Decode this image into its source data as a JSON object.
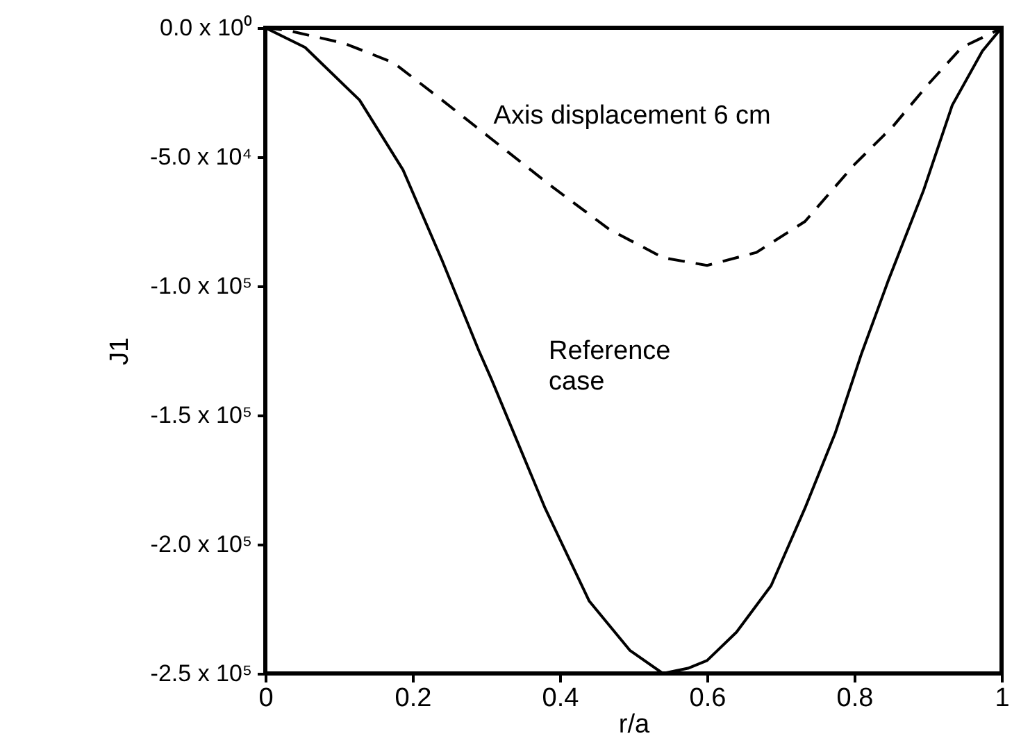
{
  "chart_data": {
    "type": "line",
    "xlabel": "r/a",
    "ylabel": "J1",
    "xlim": [
      0,
      1
    ],
    "xticks": [
      0,
      0.2,
      0.4,
      0.6,
      0.8,
      1
    ],
    "ylim": [
      -250000,
      0
    ],
    "yticks": [
      {
        "value": 0,
        "label": "0.0 x 10⁰"
      },
      {
        "value": -50000,
        "label": "-5.0 x 10⁴"
      },
      {
        "value": -100000,
        "label": "-1.0 x 10⁵"
      },
      {
        "value": -150000,
        "label": "-1.5 x 10⁵"
      },
      {
        "value": -200000,
        "label": "-2.0 x 10⁵"
      },
      {
        "value": -250000,
        "label": "-2.5 x 10⁵"
      }
    ],
    "grid": false,
    "marker": "none",
    "series": [
      {
        "name": "Reference case",
        "color": "#000000",
        "line_style": "solid",
        "x": [
          0,
          0.054,
          0.128,
          0.187,
          0.24,
          0.29,
          0.307,
          0.38,
          0.44,
          0.495,
          0.54,
          0.574,
          0.6,
          0.64,
          0.687,
          0.733,
          0.774,
          0.81,
          0.846,
          0.894,
          0.933,
          0.974,
          1
        ],
        "values": [
          0,
          -7600,
          -28000,
          -55000,
          -90000,
          -125000,
          -136000,
          -186000,
          -222000,
          -241000,
          -250000,
          -248000,
          -245000,
          -234000,
          -216000,
          -186000,
          -157000,
          -126000,
          -98000,
          -63000,
          -30000,
          -9000,
          0
        ]
      },
      {
        "name": "Axis displacement 6 cm",
        "color": "#000000",
        "line_style": "dashed",
        "x": [
          0,
          0.03,
          0.107,
          0.174,
          0.24,
          0.307,
          0.387,
          0.467,
          0.54,
          0.6,
          0.667,
          0.733,
          0.8,
          0.853,
          0.9,
          0.946,
          0.987,
          1
        ],
        "values": [
          0,
          -1000,
          -6000,
          -13500,
          -28000,
          -43000,
          -61000,
          -78000,
          -89000,
          -92000,
          -87000,
          -75000,
          -53000,
          -38000,
          -22000,
          -7600,
          -2000,
          0
        ]
      }
    ]
  }
}
